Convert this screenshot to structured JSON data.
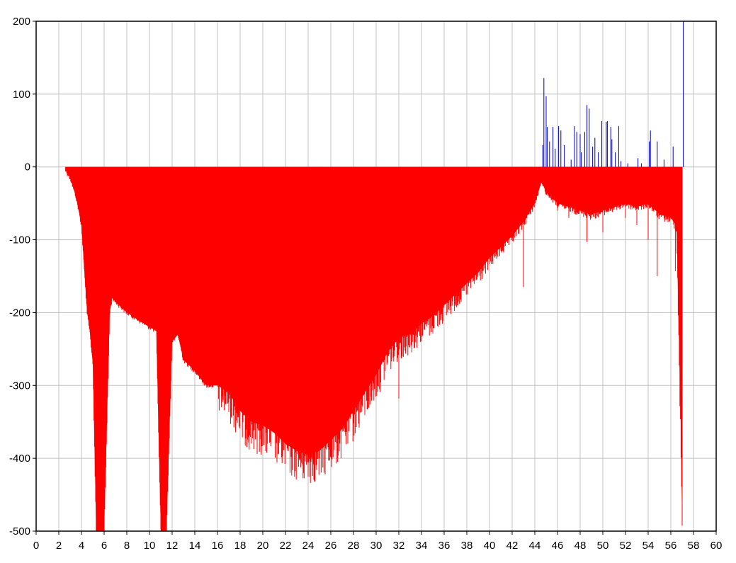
{
  "chart_data": {
    "type": "bar",
    "title": "",
    "xlabel": "",
    "ylabel": "",
    "xlim": [
      0,
      60
    ],
    "ylim": [
      -500,
      200
    ],
    "x_ticks": [
      "0",
      "2",
      "4",
      "6",
      "8",
      "10",
      "12",
      "14",
      "16",
      "18",
      "20",
      "22",
      "24",
      "26",
      "28",
      "30",
      "32",
      "34",
      "36",
      "38",
      "40",
      "42",
      "44",
      "46",
      "48",
      "50",
      "52",
      "54",
      "56",
      "58",
      "60"
    ],
    "y_ticks": [
      "200",
      "100",
      "0",
      "-100",
      "-200",
      "-300",
      "-400",
      "-500"
    ],
    "grid": true,
    "legend": "none",
    "colors": {
      "positive": "#0000cc",
      "negative": "#ff0000",
      "grid": "#c0c0c0",
      "axis": "#000000"
    },
    "series": [
      {
        "negative_envelope": {
          "x": [
            2.6,
            3.0,
            3.5,
            4.0,
            4.2,
            4.5,
            4.7,
            5.0,
            5.3,
            6.0,
            6.5,
            6.7,
            7.0,
            8.0,
            9.0,
            10.0,
            10.6,
            11.0,
            11.5,
            12.0,
            12.5,
            13.0,
            14.0,
            15.0,
            16.0,
            17.0,
            18.0,
            19.0,
            20.0,
            21.0,
            22.0,
            23.0,
            24.0,
            25.0,
            26.0,
            27.0,
            28.0,
            29.0,
            30.0,
            31.0,
            32.0,
            33.0,
            34.0,
            35.0,
            36.0,
            37.0,
            38.0,
            39.0,
            40.0,
            41.0,
            42.0,
            43.0,
            44.0,
            44.6,
            45.0,
            46.0,
            47.0,
            48.0,
            49.0,
            50.0,
            51.0,
            52.0,
            53.0,
            54.0,
            55.0,
            56.0,
            56.5,
            56.9,
            57.0
          ],
          "y": [
            -5,
            -15,
            -40,
            -80,
            -130,
            -200,
            -220,
            -270,
            -500,
            -500,
            -200,
            -180,
            -185,
            -200,
            -210,
            -220,
            -225,
            -500,
            -500,
            -240,
            -230,
            -265,
            -280,
            -300,
            -300,
            -310,
            -335,
            -350,
            -355,
            -365,
            -380,
            -390,
            -395,
            -390,
            -375,
            -360,
            -335,
            -310,
            -285,
            -255,
            -235,
            -230,
            -215,
            -205,
            -190,
            -175,
            -160,
            -145,
            -125,
            -110,
            -95,
            -75,
            -50,
            -20,
            -35,
            -50,
            -55,
            -60,
            -65,
            -60,
            -55,
            -50,
            -55,
            -50,
            -65,
            -70,
            -80,
            -370,
            -500
          ]
        },
        "negative_spikes": [
          {
            "x": 24.6,
            "y": -405
          },
          {
            "x": 26.6,
            "y": -405
          },
          {
            "x": 25.0,
            "y": -400
          },
          {
            "x": 32.0,
            "y": -318
          },
          {
            "x": 43.0,
            "y": -165
          },
          {
            "x": 48.6,
            "y": -103
          },
          {
            "x": 50.0,
            "y": -90
          },
          {
            "x": 54.0,
            "y": -100
          },
          {
            "x": 54.8,
            "y": -150
          },
          {
            "x": 56.4,
            "y": -143
          },
          {
            "x": 46.0,
            "y": -60
          },
          {
            "x": 47.0,
            "y": -70
          },
          {
            "x": 52.0,
            "y": -70
          },
          {
            "x": 53.0,
            "y": -80
          }
        ]
      },
      {
        "positive_spikes": [
          {
            "x": 44.7,
            "y": 30
          },
          {
            "x": 44.8,
            "y": 122
          },
          {
            "x": 45.0,
            "y": 97
          },
          {
            "x": 45.1,
            "y": 55
          },
          {
            "x": 45.3,
            "y": 35
          },
          {
            "x": 45.6,
            "y": 55
          },
          {
            "x": 45.8,
            "y": 25
          },
          {
            "x": 46.1,
            "y": 56
          },
          {
            "x": 46.3,
            "y": 50
          },
          {
            "x": 46.6,
            "y": 30
          },
          {
            "x": 47.2,
            "y": 10
          },
          {
            "x": 47.5,
            "y": 56
          },
          {
            "x": 47.7,
            "y": 48
          },
          {
            "x": 48.0,
            "y": 45
          },
          {
            "x": 48.1,
            "y": 20
          },
          {
            "x": 48.4,
            "y": 48
          },
          {
            "x": 48.6,
            "y": 85
          },
          {
            "x": 48.8,
            "y": 80
          },
          {
            "x": 49.1,
            "y": 28
          },
          {
            "x": 49.3,
            "y": 40
          },
          {
            "x": 49.6,
            "y": 20
          },
          {
            "x": 49.9,
            "y": 63
          },
          {
            "x": 50.3,
            "y": 62
          },
          {
            "x": 50.4,
            "y": 63
          },
          {
            "x": 50.7,
            "y": 55
          },
          {
            "x": 50.8,
            "y": 38
          },
          {
            "x": 51.1,
            "y": 20
          },
          {
            "x": 51.4,
            "y": 56
          },
          {
            "x": 51.6,
            "y": 8
          },
          {
            "x": 52.2,
            "y": 5
          },
          {
            "x": 53.1,
            "y": 12
          },
          {
            "x": 53.4,
            "y": 5
          },
          {
            "x": 54.1,
            "y": 35
          },
          {
            "x": 54.2,
            "y": 50
          },
          {
            "x": 54.8,
            "y": 35
          },
          {
            "x": 55.4,
            "y": 10
          },
          {
            "x": 56.2,
            "y": 28
          },
          {
            "x": 57.1,
            "y": 200
          }
        ]
      }
    ]
  }
}
